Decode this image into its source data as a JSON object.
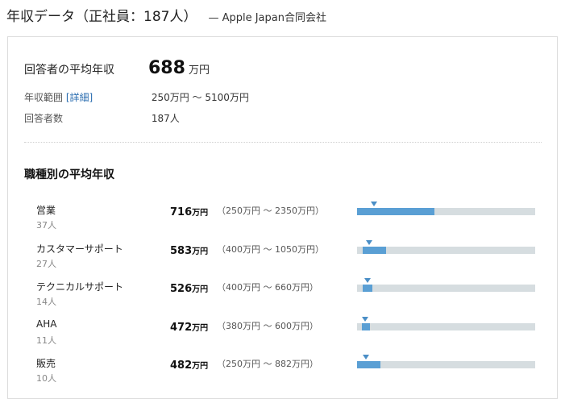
{
  "header": {
    "title": "年収データ（正社員：187人）",
    "company": "— Apple Japan合同会社"
  },
  "summary": {
    "avg_label": "回答者の平均年収",
    "avg_value": "688",
    "avg_unit": "万円",
    "range_label": "年収範囲",
    "detail_link": "[詳細]",
    "range_value": "250万円 〜 5100万円",
    "count_label": "回答者数",
    "count_value": "187人"
  },
  "section_title": "職種別の平均年収",
  "scale": {
    "min": 250,
    "max": 5100
  },
  "jobs": [
    {
      "name": "営業",
      "count": "37人",
      "avg": "716",
      "unit": "万円",
      "range": "（250万円 〜 2350万円）",
      "min": 250,
      "max": 2350,
      "avg_num": 716
    },
    {
      "name": "カスタマーサポート",
      "count": "27人",
      "avg": "583",
      "unit": "万円",
      "range": "（400万円 〜 1050万円）",
      "min": 400,
      "max": 1050,
      "avg_num": 583
    },
    {
      "name": "テクニカルサポート",
      "count": "14人",
      "avg": "526",
      "unit": "万円",
      "range": "（400万円 〜 660万円）",
      "min": 400,
      "max": 660,
      "avg_num": 526
    },
    {
      "name": "AHA",
      "count": "11人",
      "avg": "472",
      "unit": "万円",
      "range": "（380万円 〜 600万円）",
      "min": 380,
      "max": 600,
      "avg_num": 472
    },
    {
      "name": "販売",
      "count": "10人",
      "avg": "482",
      "unit": "万円",
      "range": "（250万円 〜 882万円）",
      "min": 250,
      "max": 882,
      "avg_num": 482
    }
  ],
  "colors": {
    "bar_fill": "#5a9fd4",
    "bar_track": "#d6dde0",
    "marker": "#4a8ec6",
    "link": "#2a6db0"
  }
}
